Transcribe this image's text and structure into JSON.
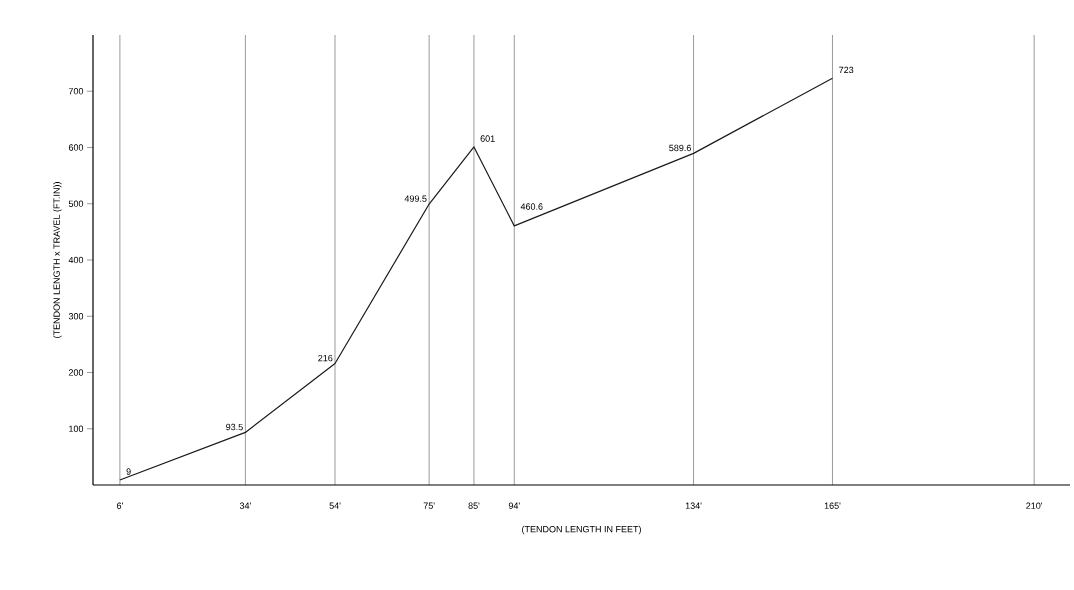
{
  "chart_data": {
    "type": "line",
    "xlabel": "(TENDON LENGTH IN FEET)",
    "ylabel": "(TENDON LENGTH x TRAVEL (FT.IN))",
    "x": [
      6,
      34,
      54,
      75,
      85,
      94,
      134,
      165
    ],
    "values": [
      9,
      93.5,
      216,
      499.5,
      601,
      460.6,
      589.6,
      723
    ],
    "color": "#1a1a1a",
    "xlim": [
      0,
      218
    ],
    "ylim": [
      0,
      800
    ],
    "xticks": [
      {
        "value": 6,
        "label": "6'"
      },
      {
        "value": 34,
        "label": "34'"
      },
      {
        "value": 54,
        "label": "54'"
      },
      {
        "value": 75,
        "label": "75'"
      },
      {
        "value": 85,
        "label": "85'"
      },
      {
        "value": 94,
        "label": "94'"
      },
      {
        "value": 134,
        "label": "134'"
      },
      {
        "value": 165,
        "label": "165'"
      },
      {
        "value": 210,
        "label": "210'"
      }
    ],
    "yticks": [
      100,
      200,
      300,
      400,
      500,
      600,
      700
    ],
    "grid": "x",
    "data_labels": true,
    "marker": "none",
    "line_style": "solid"
  }
}
